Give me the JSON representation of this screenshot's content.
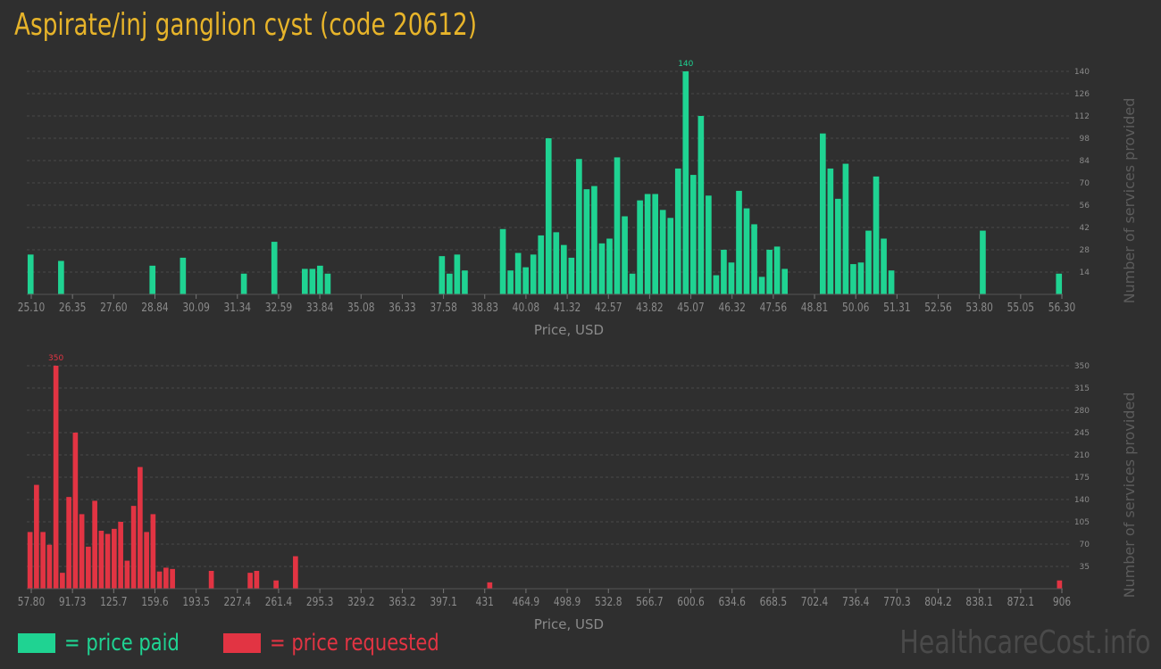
{
  "title": "Aspirate/inj ganglion cyst (code 20612)",
  "watermark": "HealthcareCost.info",
  "colors": {
    "paid": "#1fd392",
    "requested": "#e23443",
    "title": "#e7b42a",
    "axis_text": "#8a8a8a",
    "grid": "#4a4a4a"
  },
  "legend": {
    "paid_label": "= price paid",
    "requested_label": "= price requested"
  },
  "chart_data": [
    {
      "type": "bar",
      "name": "price-paid",
      "xlabel": "Price, USD",
      "ylabel": "Number of services provided",
      "x_ticks": [
        "25.10",
        "26.35",
        "27.60",
        "28.84",
        "30.09",
        "31.34",
        "32.59",
        "33.84",
        "35.08",
        "36.33",
        "37.58",
        "38.83",
        "40.08",
        "41.32",
        "42.57",
        "43.82",
        "45.07",
        "46.32",
        "47.56",
        "48.81",
        "50.06",
        "51.31",
        "52.56",
        "53.80",
        "55.05",
        "56.30"
      ],
      "y_ticks": [
        14,
        28,
        42,
        56,
        70,
        84,
        98,
        112,
        126,
        140
      ],
      "ylim": [
        0,
        140
      ],
      "peak_label": "140",
      "values": [
        25,
        0,
        0,
        0,
        21,
        0,
        0,
        0,
        0,
        0,
        0,
        0,
        0,
        0,
        0,
        0,
        18,
        0,
        0,
        0,
        23,
        0,
        0,
        0,
        0,
        0,
        0,
        0,
        13,
        0,
        0,
        0,
        33,
        0,
        0,
        0,
        16,
        16,
        18,
        13,
        0,
        0,
        0,
        0,
        0,
        0,
        0,
        0,
        0,
        0,
        0,
        0,
        0,
        0,
        24,
        13,
        25,
        15,
        0,
        0,
        0,
        0,
        41,
        15,
        26,
        17,
        25,
        37,
        98,
        39,
        31,
        23,
        85,
        66,
        68,
        32,
        35,
        86,
        49,
        13,
        59,
        63,
        63,
        53,
        48,
        79,
        140,
        75,
        112,
        62,
        12,
        28,
        20,
        65,
        54,
        44,
        11,
        28,
        30,
        16,
        0,
        0,
        0,
        0,
        101,
        79,
        60,
        82,
        19,
        20,
        40,
        74,
        35,
        15,
        0,
        0,
        0,
        0,
        0,
        0,
        0,
        0,
        0,
        0,
        0,
        40,
        0,
        0,
        0,
        0,
        0,
        0,
        0,
        0,
        0,
        13
      ]
    },
    {
      "type": "bar",
      "name": "price-requested",
      "xlabel": "Price, USD",
      "ylabel": "Number of services provided",
      "x_ticks": [
        "57.80",
        "91.73",
        "125.7",
        "159.6",
        "193.5",
        "227.4",
        "261.4",
        "295.3",
        "329.2",
        "363.2",
        "397.1",
        "431",
        "464.9",
        "498.9",
        "532.8",
        "566.7",
        "600.6",
        "634.6",
        "668.5",
        "702.4",
        "736.4",
        "770.3",
        "804.2",
        "838.1",
        "872.1",
        "906"
      ],
      "y_ticks": [
        35,
        70,
        105,
        140,
        175,
        210,
        245,
        280,
        315,
        350
      ],
      "ylim": [
        0,
        350
      ],
      "peak_label": "350",
      "values": [
        89,
        163,
        89,
        69,
        350,
        25,
        144,
        245,
        117,
        66,
        138,
        91,
        86,
        94,
        105,
        44,
        130,
        191,
        89,
        117,
        27,
        33,
        31,
        0,
        0,
        0,
        0,
        0,
        28,
        0,
        0,
        0,
        0,
        0,
        25,
        28,
        0,
        0,
        13,
        0,
        0,
        51,
        0,
        0,
        0,
        0,
        0,
        0,
        0,
        0,
        0,
        0,
        0,
        0,
        0,
        0,
        0,
        0,
        0,
        0,
        0,
        0,
        0,
        0,
        0,
        0,
        0,
        0,
        0,
        0,
        0,
        10,
        0,
        0,
        0,
        0,
        0,
        0,
        0,
        0,
        0,
        0,
        0,
        0,
        0,
        0,
        0,
        0,
        0,
        0,
        0,
        0,
        0,
        0,
        0,
        0,
        0,
        0,
        0,
        0,
        0,
        0,
        0,
        0,
        0,
        0,
        0,
        0,
        0,
        0,
        0,
        0,
        0,
        0,
        0,
        0,
        0,
        0,
        0,
        0,
        0,
        0,
        0,
        0,
        0,
        0,
        0,
        0,
        0,
        0,
        0,
        0,
        0,
        0,
        0,
        0,
        0,
        0,
        0,
        0,
        0,
        0,
        0,
        0,
        0,
        0,
        0,
        0,
        0,
        0,
        0,
        0,
        0,
        0,
        0,
        0,
        0,
        0,
        0,
        13
      ]
    }
  ]
}
